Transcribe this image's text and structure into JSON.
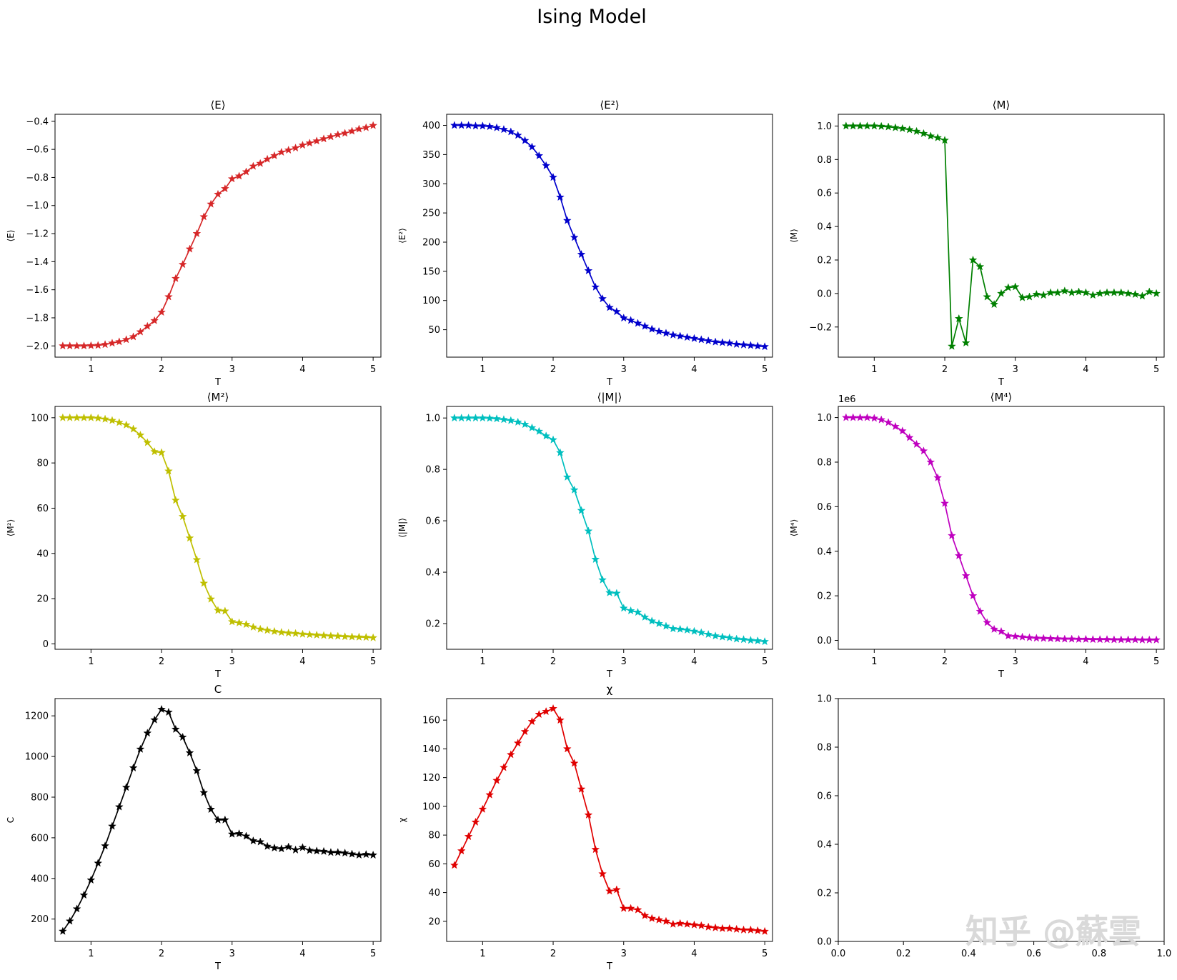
{
  "figure_title": "Ising Model",
  "watermark": "知乎 @蘇雲",
  "chart_data": [
    {
      "id": "E",
      "type": "line",
      "title": "⟨E⟩",
      "xlabel": "T",
      "ylabel": "⟨E⟩",
      "color": "#d62728",
      "xlim": [
        0.49,
        5.11
      ],
      "ylim": [
        -2.08,
        -0.35
      ],
      "xticks": [
        1,
        2,
        3,
        4,
        5
      ],
      "xticklabels": [
        "1",
        "2",
        "3",
        "4",
        "5"
      ],
      "yticks": [
        -2.0,
        -1.8,
        -1.6,
        -1.4,
        -1.2,
        -1.0,
        -0.8,
        -0.6,
        -0.4
      ],
      "yticklabels": [
        "−2.0",
        "−1.8",
        "−1.6",
        "−1.4",
        "−1.2",
        "−1.0",
        "−0.8",
        "−0.6",
        "−0.4"
      ],
      "x": [
        0.6,
        0.7,
        0.8,
        0.9,
        1.0,
        1.1,
        1.2,
        1.3,
        1.4,
        1.5,
        1.6,
        1.7,
        1.8,
        1.9,
        2.0,
        2.1,
        2.2,
        2.3,
        2.4,
        2.5,
        2.6,
        2.7,
        2.8,
        2.9,
        3.0,
        3.1,
        3.2,
        3.3,
        3.4,
        3.5,
        3.6,
        3.7,
        3.8,
        3.9,
        4.0,
        4.1,
        4.2,
        4.3,
        4.4,
        4.5,
        4.6,
        4.7,
        4.8,
        4.9,
        5.0
      ],
      "y": [
        -2.0,
        -2.0,
        -2.0,
        -2.0,
        -1.998,
        -1.996,
        -1.99,
        -1.98,
        -1.97,
        -1.955,
        -1.935,
        -1.9,
        -1.86,
        -1.82,
        -1.76,
        -1.65,
        -1.52,
        -1.42,
        -1.31,
        -1.2,
        -1.08,
        -0.99,
        -0.92,
        -0.88,
        -0.81,
        -0.79,
        -0.76,
        -0.72,
        -0.7,
        -0.67,
        -0.645,
        -0.62,
        -0.605,
        -0.59,
        -0.57,
        -0.555,
        -0.54,
        -0.525,
        -0.51,
        -0.495,
        -0.485,
        -0.47,
        -0.455,
        -0.445,
        -0.43
      ]
    },
    {
      "id": "E2",
      "type": "line",
      "title": "⟨E²⟩",
      "xlabel": "T",
      "ylabel": "⟨E²⟩",
      "color": "#0000cc",
      "xlim": [
        0.49,
        5.11
      ],
      "ylim": [
        3,
        419
      ],
      "xticks": [
        1,
        2,
        3,
        4,
        5
      ],
      "xticklabels": [
        "1",
        "2",
        "3",
        "4",
        "5"
      ],
      "yticks": [
        50,
        100,
        150,
        200,
        250,
        300,
        350,
        400
      ],
      "yticklabels": [
        "50",
        "100",
        "150",
        "200",
        "250",
        "300",
        "350",
        "400"
      ],
      "x": [
        0.6,
        0.7,
        0.8,
        0.9,
        1.0,
        1.1,
        1.2,
        1.3,
        1.4,
        1.5,
        1.6,
        1.7,
        1.8,
        1.9,
        2.0,
        2.1,
        2.2,
        2.3,
        2.4,
        2.5,
        2.6,
        2.7,
        2.8,
        2.9,
        3.0,
        3.1,
        3.2,
        3.3,
        3.4,
        3.5,
        3.6,
        3.7,
        3.8,
        3.9,
        4.0,
        4.1,
        4.2,
        4.3,
        4.4,
        4.5,
        4.6,
        4.7,
        4.8,
        4.9,
        5.0
      ],
      "y": [
        400,
        400,
        400,
        399,
        399,
        398,
        396,
        393,
        389,
        383,
        374,
        363,
        348,
        331,
        311,
        277,
        237,
        208,
        179,
        151,
        123,
        103,
        88,
        81,
        70,
        66,
        61,
        56,
        51,
        47,
        44,
        41,
        39,
        37,
        35,
        33,
        31,
        29,
        28,
        27,
        25,
        24,
        23,
        22,
        21
      ]
    },
    {
      "id": "M",
      "type": "line",
      "title": "⟨M⟩",
      "xlabel": "T",
      "ylabel": "⟨M⟩",
      "color": "#008000",
      "xlim": [
        0.49,
        5.11
      ],
      "ylim": [
        -0.38,
        1.07
      ],
      "xticks": [
        1,
        2,
        3,
        4,
        5
      ],
      "xticklabels": [
        "1",
        "2",
        "3",
        "4",
        "5"
      ],
      "yticks": [
        -0.2,
        0.0,
        0.2,
        0.4,
        0.6,
        0.8,
        1.0
      ],
      "yticklabels": [
        "−0.2",
        "0.0",
        "0.2",
        "0.4",
        "0.6",
        "0.8",
        "1.0"
      ],
      "x": [
        0.6,
        0.7,
        0.8,
        0.9,
        1.0,
        1.1,
        1.2,
        1.3,
        1.4,
        1.5,
        1.6,
        1.7,
        1.8,
        1.9,
        2.0,
        2.1,
        2.2,
        2.3,
        2.4,
        2.5,
        2.6,
        2.7,
        2.8,
        2.9,
        3.0,
        3.1,
        3.2,
        3.3,
        3.4,
        3.5,
        3.6,
        3.7,
        3.8,
        3.9,
        4.0,
        4.1,
        4.2,
        4.3,
        4.4,
        4.5,
        4.6,
        4.7,
        4.8,
        4.9,
        5.0
      ],
      "y": [
        1.0,
        1.0,
        1.0,
        1.0,
        1.0,
        0.998,
        0.995,
        0.99,
        0.985,
        0.978,
        0.968,
        0.955,
        0.94,
        0.93,
        0.915,
        -0.315,
        -0.15,
        -0.295,
        0.2,
        0.16,
        -0.02,
        -0.065,
        0.0,
        0.035,
        0.04,
        -0.025,
        -0.02,
        -0.005,
        -0.01,
        0.005,
        0.005,
        0.015,
        0.005,
        0.01,
        0.005,
        -0.01,
        0.0,
        0.005,
        0.005,
        0.005,
        0.0,
        -0.005,
        -0.015,
        0.01,
        0.0
      ]
    },
    {
      "id": "M2",
      "type": "line",
      "title": "⟨M²⟩",
      "xlabel": "T",
      "ylabel": "⟨M²⟩",
      "color": "#bfbf00",
      "xlim": [
        0.49,
        5.11
      ],
      "ylim": [
        -2.4,
        105.0
      ],
      "xticks": [
        1,
        2,
        3,
        4,
        5
      ],
      "xticklabels": [
        "1",
        "2",
        "3",
        "4",
        "5"
      ],
      "yticks": [
        0,
        20,
        40,
        60,
        80,
        100
      ],
      "yticklabels": [
        "0",
        "20",
        "40",
        "60",
        "80",
        "100"
      ],
      "x": [
        0.6,
        0.7,
        0.8,
        0.9,
        1.0,
        1.1,
        1.2,
        1.3,
        1.4,
        1.5,
        1.6,
        1.7,
        1.8,
        1.9,
        2.0,
        2.1,
        2.2,
        2.3,
        2.4,
        2.5,
        2.6,
        2.7,
        2.8,
        2.9,
        3.0,
        3.1,
        3.2,
        3.3,
        3.4,
        3.5,
        3.6,
        3.7,
        3.8,
        3.9,
        4.0,
        4.1,
        4.2,
        4.3,
        4.4,
        4.5,
        4.6,
        4.7,
        4.8,
        4.9,
        5.0
      ],
      "y": [
        100,
        100,
        100,
        100,
        100,
        99.8,
        99.4,
        98.8,
        97.9,
        96.8,
        95.0,
        92.3,
        89.0,
        85.0,
        84.6,
        76.4,
        63.5,
        56.3,
        46.8,
        37.2,
        26.8,
        19.8,
        14.8,
        14.5,
        9.8,
        9.3,
        8.6,
        7.4,
        6.5,
        6.0,
        5.5,
        5.1,
        4.8,
        4.6,
        4.3,
        4.1,
        3.9,
        3.7,
        3.5,
        3.4,
        3.2,
        3.1,
        3.0,
        2.9,
        2.7
      ]
    },
    {
      "id": "absM",
      "type": "line",
      "title": "⟨|M|⟩",
      "xlabel": "T",
      "ylabel": "⟨|M|⟩",
      "color": "#00bfbf",
      "xlim": [
        0.49,
        5.11
      ],
      "ylim": [
        0.1,
        1.045
      ],
      "xticks": [
        1,
        2,
        3,
        4,
        5
      ],
      "xticklabels": [
        "1",
        "2",
        "3",
        "4",
        "5"
      ],
      "yticks": [
        0.2,
        0.4,
        0.6,
        0.8,
        1.0
      ],
      "yticklabels": [
        "0.2",
        "0.4",
        "0.6",
        "0.8",
        "1.0"
      ],
      "x": [
        0.6,
        0.7,
        0.8,
        0.9,
        1.0,
        1.1,
        1.2,
        1.3,
        1.4,
        1.5,
        1.6,
        1.7,
        1.8,
        1.9,
        2.0,
        2.1,
        2.2,
        2.3,
        2.4,
        2.5,
        2.6,
        2.7,
        2.8,
        2.9,
        3.0,
        3.1,
        3.2,
        3.3,
        3.4,
        3.5,
        3.6,
        3.7,
        3.8,
        3.9,
        4.0,
        4.1,
        4.2,
        4.3,
        4.4,
        4.5,
        4.6,
        4.7,
        4.8,
        4.9,
        5.0
      ],
      "y": [
        1.0,
        1.0,
        1.0,
        1.0,
        1.0,
        0.999,
        0.997,
        0.994,
        0.99,
        0.984,
        0.975,
        0.962,
        0.948,
        0.93,
        0.915,
        0.865,
        0.77,
        0.72,
        0.64,
        0.56,
        0.45,
        0.37,
        0.32,
        0.318,
        0.26,
        0.25,
        0.244,
        0.225,
        0.21,
        0.2,
        0.19,
        0.18,
        0.178,
        0.175,
        0.17,
        0.165,
        0.158,
        0.152,
        0.148,
        0.145,
        0.14,
        0.138,
        0.135,
        0.133,
        0.13
      ]
    },
    {
      "id": "M4",
      "type": "line",
      "title": "⟨M⁴⟩",
      "xlabel": "T",
      "ylabel": "⟨M⁴⟩",
      "color": "#bf00bf",
      "xlim": [
        0.49,
        5.11
      ],
      "ylim": [
        -0.04,
        1.05
      ],
      "xticks": [
        1,
        2,
        3,
        4,
        5
      ],
      "xticklabels": [
        "1",
        "2",
        "3",
        "4",
        "5"
      ],
      "yticks": [
        0.0,
        0.2,
        0.4,
        0.6,
        0.8,
        1.0
      ],
      "yticklabels": [
        "0.0",
        "0.2",
        "0.4",
        "0.6",
        "0.8",
        "1.0"
      ],
      "offset_label": "1e6",
      "x": [
        0.6,
        0.7,
        0.8,
        0.9,
        1.0,
        1.1,
        1.2,
        1.3,
        1.4,
        1.5,
        1.6,
        1.7,
        1.8,
        1.9,
        2.0,
        2.1,
        2.2,
        2.3,
        2.4,
        2.5,
        2.6,
        2.7,
        2.8,
        2.9,
        3.0,
        3.1,
        3.2,
        3.3,
        3.4,
        3.5,
        3.6,
        3.7,
        3.8,
        3.9,
        4.0,
        4.1,
        4.2,
        4.3,
        4.4,
        4.5,
        4.6,
        4.7,
        4.8,
        4.9,
        5.0
      ],
      "y": [
        1.0,
        1.0,
        1.0,
        1.0,
        0.997,
        0.99,
        0.978,
        0.96,
        0.94,
        0.91,
        0.88,
        0.85,
        0.8,
        0.73,
        0.615,
        0.47,
        0.38,
        0.29,
        0.2,
        0.13,
        0.08,
        0.05,
        0.04,
        0.02,
        0.018,
        0.015,
        0.012,
        0.01,
        0.009,
        0.008,
        0.007,
        0.006,
        0.006,
        0.005,
        0.005,
        0.004,
        0.004,
        0.004,
        0.003,
        0.003,
        0.003,
        0.003,
        0.002,
        0.002,
        0.002
      ]
    },
    {
      "id": "C",
      "type": "line",
      "title": "C",
      "xlabel": "T",
      "ylabel": "C",
      "color": "#000000",
      "xlim": [
        0.49,
        5.11
      ],
      "ylim": [
        90,
        1285
      ],
      "xticks": [
        1,
        2,
        3,
        4,
        5
      ],
      "xticklabels": [
        "1",
        "2",
        "3",
        "4",
        "5"
      ],
      "yticks": [
        200,
        400,
        600,
        800,
        1000,
        1200
      ],
      "yticklabels": [
        "200",
        "400",
        "600",
        "800",
        "1000",
        "1200"
      ],
      "x": [
        0.6,
        0.7,
        0.8,
        0.9,
        1.0,
        1.1,
        1.2,
        1.3,
        1.4,
        1.5,
        1.6,
        1.7,
        1.8,
        1.9,
        2.0,
        2.1,
        2.2,
        2.3,
        2.4,
        2.5,
        2.6,
        2.7,
        2.8,
        2.9,
        3.0,
        3.1,
        3.2,
        3.3,
        3.4,
        3.5,
        3.6,
        3.7,
        3.8,
        3.9,
        4.0,
        4.1,
        4.2,
        4.3,
        4.4,
        4.5,
        4.6,
        4.7,
        4.8,
        4.9,
        5.0
      ],
      "y": [
        140,
        190,
        250,
        318,
        392,
        475,
        560,
        657,
        752,
        848,
        944,
        1036,
        1115,
        1180,
        1232,
        1218,
        1134,
        1095,
        1018,
        930,
        822,
        740,
        688,
        688,
        618,
        620,
        608,
        585,
        580,
        558,
        550,
        546,
        555,
        540,
        552,
        538,
        535,
        533,
        528,
        528,
        525,
        520,
        515,
        518,
        515
      ]
    },
    {
      "id": "chi",
      "type": "line",
      "title": "χ",
      "xlabel": "T",
      "ylabel": "χ",
      "color": "#e00000",
      "xlim": [
        0.49,
        5.11
      ],
      "ylim": [
        6,
        175
      ],
      "xticks": [
        1,
        2,
        3,
        4,
        5
      ],
      "xticklabels": [
        "1",
        "2",
        "3",
        "4",
        "5"
      ],
      "yticks": [
        20,
        40,
        60,
        80,
        100,
        120,
        140,
        160
      ],
      "yticklabels": [
        "20",
        "40",
        "60",
        "80",
        "100",
        "120",
        "140",
        "160"
      ],
      "x": [
        0.6,
        0.7,
        0.8,
        0.9,
        1.0,
        1.1,
        1.2,
        1.3,
        1.4,
        1.5,
        1.6,
        1.7,
        1.8,
        1.9,
        2.0,
        2.1,
        2.2,
        2.3,
        2.4,
        2.5,
        2.6,
        2.7,
        2.8,
        2.9,
        3.0,
        3.1,
        3.2,
        3.3,
        3.4,
        3.5,
        3.6,
        3.7,
        3.8,
        3.9,
        4.0,
        4.1,
        4.2,
        4.3,
        4.4,
        4.5,
        4.6,
        4.7,
        4.8,
        4.9,
        5.0
      ],
      "y": [
        59,
        69,
        79,
        89,
        98,
        108,
        118,
        127,
        136,
        144,
        152,
        159,
        164,
        166,
        168,
        160,
        140,
        130,
        112,
        94,
        70,
        53,
        41,
        42,
        29,
        29,
        28,
        24,
        22,
        21,
        20,
        18,
        18.5,
        18,
        17.5,
        17,
        16,
        15.5,
        15,
        15,
        14.5,
        14,
        14,
        13.5,
        13
      ]
    },
    {
      "id": "empty",
      "type": "line",
      "title": "",
      "xlabel": "",
      "ylabel": "",
      "color": "#000000",
      "xlim": [
        0.0,
        1.0
      ],
      "ylim": [
        0.0,
        1.0
      ],
      "xticks": [
        0.0,
        0.2,
        0.4,
        0.6,
        0.8,
        1.0
      ],
      "xticklabels": [
        "0.0",
        "0.2",
        "0.4",
        "0.6",
        "0.8",
        "1.0"
      ],
      "yticks": [
        0.0,
        0.2,
        0.4,
        0.6,
        0.8,
        1.0
      ],
      "yticklabels": [
        "0.0",
        "0.2",
        "0.4",
        "0.6",
        "0.8",
        "1.0"
      ],
      "x": [],
      "y": []
    }
  ]
}
